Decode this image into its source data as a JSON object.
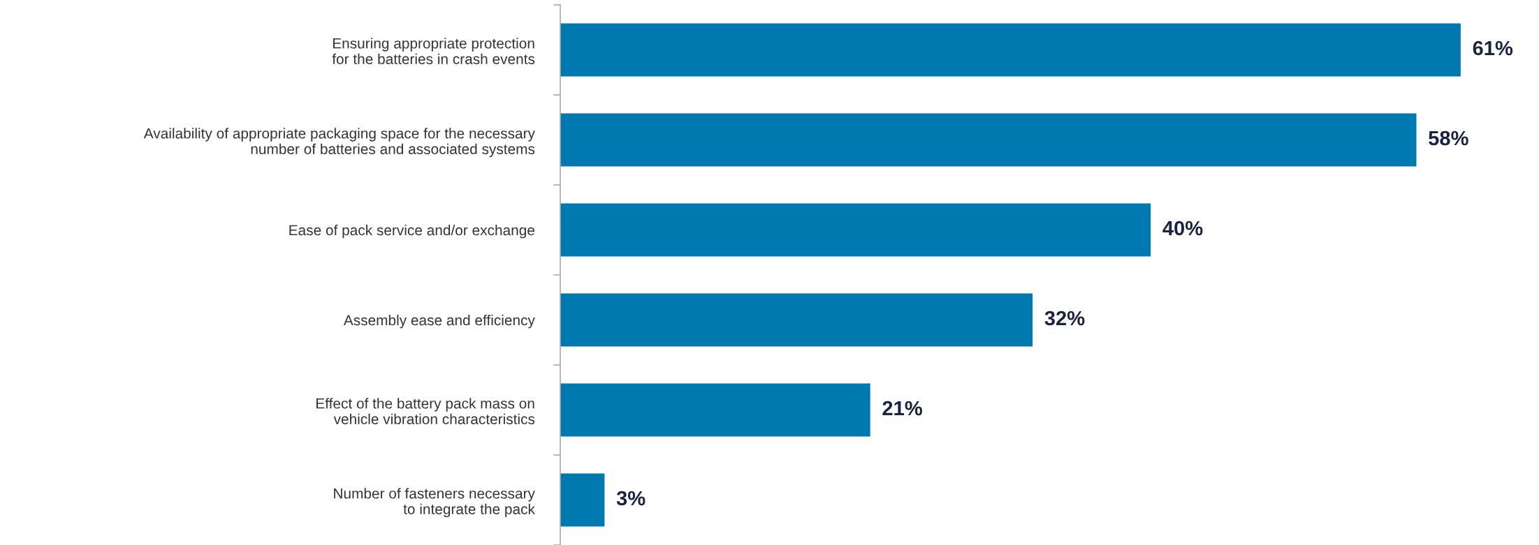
{
  "chart_data": {
    "type": "bar",
    "orientation": "horizontal",
    "categories": [
      "Ensuring appropriate protection\nfor the batteries in crash events",
      "Availability of appropriate packaging space for the necessary\nnumber of batteries and associated systems",
      "Ease of pack service and/or exchange",
      "Assembly ease and efficiency",
      "Effect of the battery pack mass on\nvehicle vibration characteristics",
      "Number of fasteners necessary\nto integrate the pack"
    ],
    "values": [
      61,
      58,
      40,
      32,
      21,
      3
    ],
    "value_labels": [
      "61%",
      "58%",
      "40%",
      "32%",
      "21%",
      "3%"
    ],
    "color": "#0079b0",
    "grid": false,
    "legend": false
  }
}
